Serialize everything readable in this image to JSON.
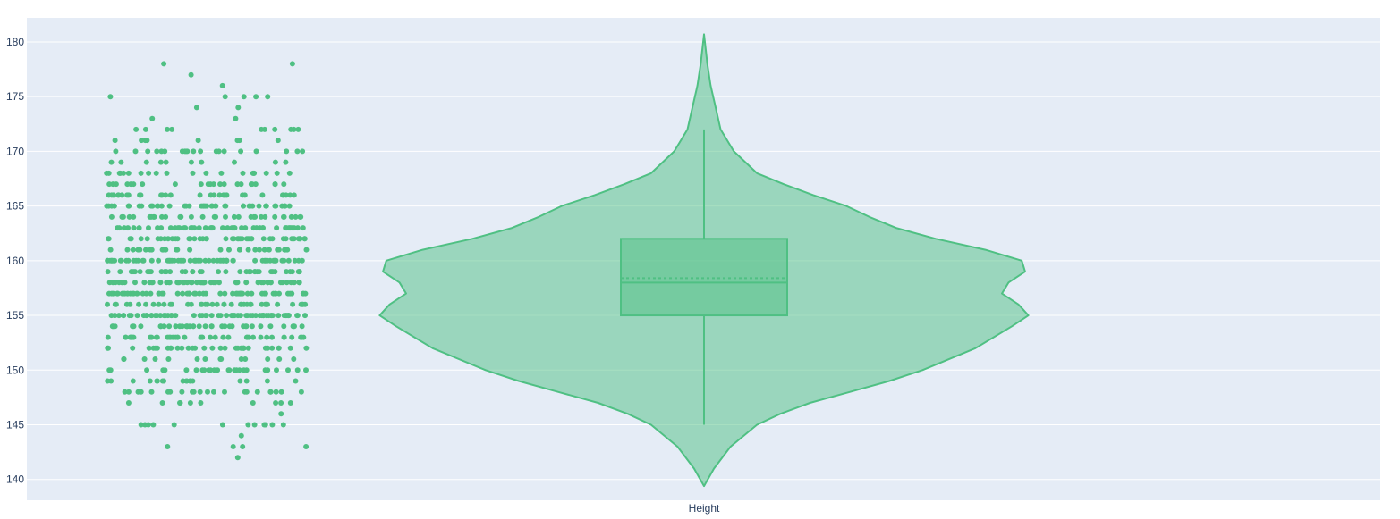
{
  "chart_data": {
    "type": "violin",
    "x_category": "Height",
    "y_ticks": [
      140,
      145,
      150,
      155,
      160,
      165,
      170,
      175,
      180
    ],
    "y_range": [
      138.1,
      182.2
    ],
    "colors": {
      "series": "#4fc083",
      "fill": "#4fc083",
      "plot_bg": "#e5ecf6",
      "grid": "#ffffff",
      "tick_text": "#2a3f5f"
    },
    "box": {
      "q1": 155,
      "median": 158,
      "mean": 158.4,
      "q3": 162,
      "lower_fence": 145,
      "upper_fence": 172
    },
    "kde_range": [
      139.4,
      180.7
    ],
    "kde_profile": [
      [
        139.4,
        0.0
      ],
      [
        141.0,
        0.03
      ],
      [
        143.0,
        0.08
      ],
      [
        145.0,
        0.16
      ],
      [
        146.0,
        0.23
      ],
      [
        147.0,
        0.32
      ],
      [
        148.0,
        0.44
      ],
      [
        149.0,
        0.56
      ],
      [
        150.0,
        0.66
      ],
      [
        152.0,
        0.82
      ],
      [
        154.0,
        0.93
      ],
      [
        155.0,
        0.98
      ],
      [
        156.0,
        0.95
      ],
      [
        157.0,
        0.9
      ],
      [
        158.0,
        0.92
      ],
      [
        159.0,
        0.97
      ],
      [
        160.0,
        0.96
      ],
      [
        161.0,
        0.85
      ],
      [
        162.0,
        0.7
      ],
      [
        163.0,
        0.58
      ],
      [
        164.0,
        0.5
      ],
      [
        165.0,
        0.43
      ],
      [
        166.0,
        0.33
      ],
      [
        167.0,
        0.24
      ],
      [
        168.0,
        0.16
      ],
      [
        170.0,
        0.09
      ],
      [
        172.0,
        0.05
      ],
      [
        174.0,
        0.035
      ],
      [
        176.0,
        0.02
      ],
      [
        178.0,
        0.01
      ],
      [
        180.7,
        0.0
      ]
    ],
    "point_counts": {
      "142": 1,
      "143": 4,
      "144": 1,
      "145": 12,
      "146": 1,
      "147": 10,
      "148": 22,
      "149": 18,
      "150": 26,
      "151": 14,
      "152": 34,
      "153": 40,
      "154": 38,
      "155": 62,
      "156": 40,
      "157": 58,
      "158": 54,
      "159": 38,
      "160": 64,
      "161": 30,
      "162": 44,
      "163": 44,
      "164": 32,
      "165": 42,
      "166": 30,
      "167": 22,
      "168": 20,
      "169": 10,
      "170": 20,
      "171": 8,
      "172": 10,
      "173": 2,
      "174": 2,
      "175": 5,
      "176": 1,
      "177": 1,
      "178": 2
    }
  }
}
